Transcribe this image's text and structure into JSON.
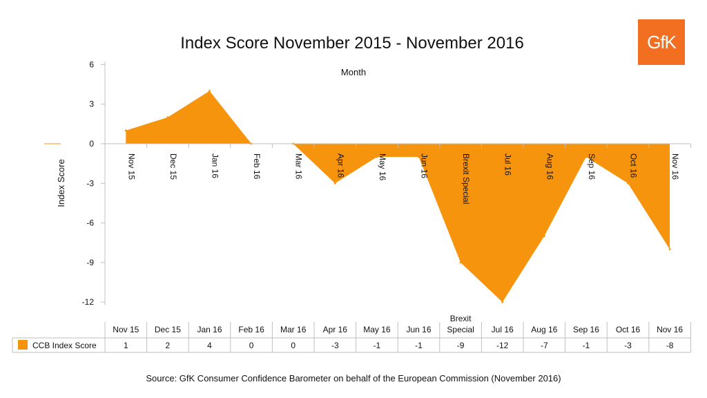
{
  "chart_data": {
    "type": "area",
    "title": "Index Score November 2015 - November 2016",
    "xlabel": "Month",
    "ylabel": "Index Score",
    "ylim": [
      -12,
      6
    ],
    "yticks": [
      6,
      3,
      0,
      -3,
      -6,
      -9,
      -12
    ],
    "categories": [
      "Nov 15",
      "Dec 15",
      "Jan 16",
      "Feb 16",
      "Mar 16",
      "Apr 16",
      "May 16",
      "Jun 16",
      "Brexit Special",
      "Jul 16",
      "Aug 16",
      "Sep 16",
      "Oct 16",
      "Nov 16"
    ],
    "series": [
      {
        "name": "CCB Index Score",
        "values": [
          1,
          2,
          4,
          0,
          0,
          -3,
          -1,
          -1,
          -9,
          -12,
          -7,
          -1,
          -3,
          -8
        ]
      }
    ],
    "table_labels": [
      "1",
      "2",
      "4",
      "0",
      "0",
      "-3",
      "-1",
      "-1",
      "-9",
      "-12",
      "-7",
      "-1",
      "-3",
      "-8"
    ],
    "legend": "data-table",
    "grid": false
  },
  "logo_text": "GfK",
  "source_text": "Source: GfK Consumer Confidence Barometer on behalf of the European Commission (November 2016)",
  "colors": {
    "series": "#F7940E",
    "logo": "#F26F21",
    "axis": "#BFBFBF"
  }
}
